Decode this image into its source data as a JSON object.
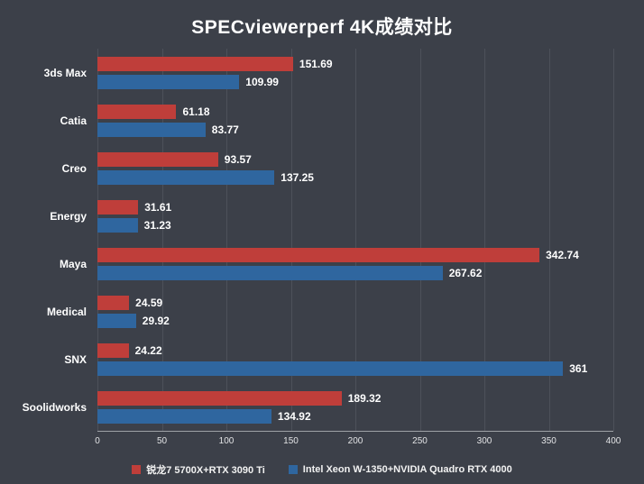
{
  "title": "SPECviewerperf 4K成绩对比",
  "colors": {
    "background": "#3c4049",
    "red": "#bf3e3a",
    "blue": "#2f669f",
    "grid": "#4d515a",
    "axis": "#9ea1a6",
    "text": "#ffffff"
  },
  "chart_data": {
    "type": "bar",
    "orientation": "horizontal",
    "title": "SPECviewerperf 4K成绩对比",
    "categories": [
      "3ds Max",
      "Catia",
      "Creo",
      "Energy",
      "Maya",
      "Medical",
      "SNX",
      "Soolidworks"
    ],
    "series": [
      {
        "name": "锐龙7 5700X+RTX 3090 Ti",
        "color": "#bf3e3a",
        "values": [
          151.69,
          61.18,
          93.57,
          31.61,
          342.74,
          24.59,
          24.22,
          189.32
        ]
      },
      {
        "name": "Intel Xeon W-1350+NVIDIA Quadro RTX 4000",
        "color": "#2f669f",
        "values": [
          109.99,
          83.77,
          137.25,
          31.23,
          267.62,
          29.92,
          361,
          134.92
        ]
      }
    ],
    "xlim": [
      0,
      400
    ],
    "xticks": [
      0,
      50,
      100,
      150,
      200,
      250,
      300,
      350,
      400
    ],
    "grid": true,
    "value_labels": true,
    "legend_position": "bottom"
  }
}
